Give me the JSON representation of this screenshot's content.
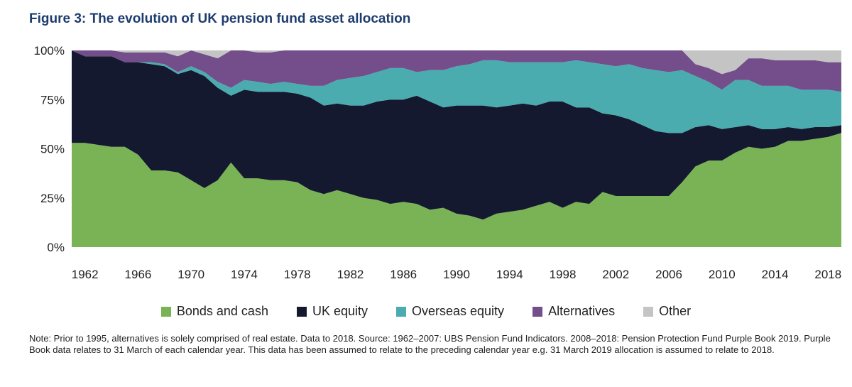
{
  "figure": {
    "title": "Figure 3: The evolution of UK pension fund asset allocation",
    "note": "Note: Prior to 1995, alternatives is solely comprised of real estate. Data to 2018. Source: 1962–2007: UBS Pension Fund Indicators. 2008–2018: Pension Protection Fund Purple Book 2019. Purple Book data relates to 31 March of each calendar year. This data has been assumed to relate to the preceding calendar year e.g. 31 March 2019 allocation is assumed to relate to 2018."
  },
  "chart_data": {
    "type": "area",
    "stacked": true,
    "title": "",
    "xlabel": "",
    "ylabel": "",
    "ylim": [
      0,
      100
    ],
    "xlim": [
      1961,
      2019
    ],
    "y_ticks": [
      0,
      25,
      50,
      75,
      100
    ],
    "y_tick_labels": [
      "0%",
      "25%",
      "50%",
      "75%",
      "100%"
    ],
    "x_ticks": [
      1962,
      1966,
      1970,
      1974,
      1978,
      1982,
      1986,
      1990,
      1994,
      1998,
      2002,
      2006,
      2010,
      2014,
      2018
    ],
    "legend_position": "bottom",
    "grid": false,
    "x": [
      1961,
      1962,
      1963,
      1964,
      1965,
      1966,
      1967,
      1968,
      1969,
      1970,
      1971,
      1972,
      1973,
      1974,
      1975,
      1976,
      1977,
      1978,
      1979,
      1980,
      1981,
      1982,
      1983,
      1984,
      1985,
      1986,
      1987,
      1988,
      1989,
      1990,
      1991,
      1992,
      1993,
      1994,
      1995,
      1996,
      1997,
      1998,
      1999,
      2000,
      2001,
      2002,
      2003,
      2004,
      2005,
      2006,
      2007,
      2008,
      2009,
      2010,
      2011,
      2012,
      2013,
      2014,
      2015,
      2016,
      2017,
      2018,
      2019
    ],
    "series": [
      {
        "name": "Bonds and cash",
        "color": "#7ab356",
        "values": [
          53,
          53,
          52,
          51,
          51,
          47,
          39,
          39,
          38,
          34,
          30,
          34,
          43,
          35,
          35,
          34,
          34,
          33,
          29,
          27,
          29,
          27,
          25,
          24,
          22,
          23,
          22,
          19,
          20,
          17,
          16,
          14,
          17,
          18,
          19,
          21,
          23,
          20,
          23,
          22,
          28,
          26,
          26,
          26,
          26,
          26,
          33,
          41,
          44,
          44,
          48,
          51,
          50,
          51,
          54,
          54,
          55,
          56,
          58
        ]
      },
      {
        "name": "UK equity",
        "color": "#14192f",
        "values": [
          47,
          44,
          45,
          46,
          43,
          47,
          54,
          53,
          50,
          56,
          57,
          47,
          34,
          45,
          44,
          45,
          45,
          45,
          47,
          45,
          44,
          45,
          47,
          50,
          53,
          52,
          55,
          55,
          51,
          55,
          56,
          58,
          54,
          54,
          54,
          51,
          51,
          54,
          48,
          49,
          40,
          41,
          39,
          36,
          33,
          32,
          25,
          20,
          18,
          16,
          13,
          11,
          10,
          9,
          7,
          6,
          6,
          5,
          4
        ]
      },
      {
        "name": "Overseas equity",
        "color": "#4aacaf",
        "values": [
          0,
          0,
          0,
          0,
          0,
          0,
          1,
          1,
          1,
          2,
          2,
          3,
          4,
          5,
          5,
          4,
          5,
          5,
          6,
          10,
          12,
          14,
          15,
          15,
          16,
          16,
          12,
          16,
          19,
          20,
          21,
          23,
          24,
          22,
          21,
          22,
          20,
          20,
          24,
          23,
          25,
          25,
          28,
          29,
          31,
          31,
          32,
          26,
          22,
          20,
          24,
          23,
          22,
          22,
          21,
          20,
          19,
          19,
          17
        ]
      },
      {
        "name": "Alternatives",
        "color": "#734e8a",
        "values": [
          0,
          3,
          3,
          3,
          5,
          5,
          5,
          6,
          8,
          8,
          9,
          12,
          19,
          15,
          15,
          16,
          16,
          17,
          18,
          18,
          15,
          14,
          13,
          11,
          9,
          9,
          11,
          10,
          10,
          8,
          7,
          5,
          5,
          6,
          6,
          6,
          6,
          6,
          5,
          6,
          7,
          8,
          7,
          9,
          10,
          11,
          10,
          6,
          7,
          8,
          5,
          11,
          14,
          13,
          13,
          15,
          15,
          14,
          15
        ]
      },
      {
        "name": "Other",
        "color": "#c4c4c4",
        "values": [
          0,
          0,
          0,
          0,
          1,
          1,
          1,
          1,
          3,
          0,
          2,
          4,
          0,
          0,
          1,
          1,
          0,
          0,
          0,
          0,
          0,
          0,
          0,
          0,
          0,
          0,
          0,
          0,
          0,
          0,
          0,
          0,
          0,
          0,
          0,
          0,
          0,
          0,
          0,
          0,
          0,
          0,
          0,
          0,
          0,
          0,
          0,
          7,
          9,
          12,
          10,
          4,
          4,
          5,
          5,
          5,
          5,
          6,
          6
        ]
      }
    ]
  }
}
